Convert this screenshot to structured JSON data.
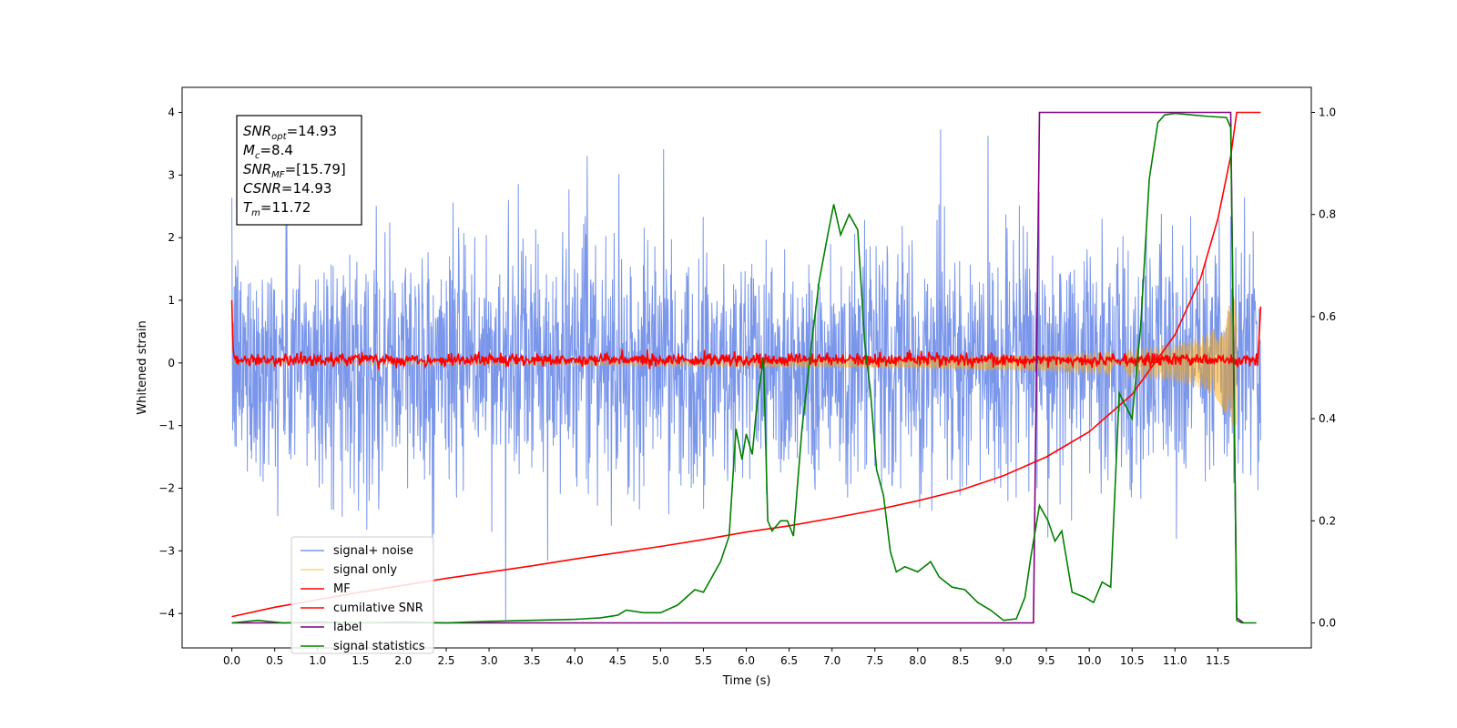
{
  "chart_data": {
    "type": "line",
    "xlabel": "Time (s)",
    "ylabel": "Whitened strain",
    "xlim": [
      -0.58,
      12.59
    ],
    "ylim": [
      -4.55,
      4.4
    ],
    "y2lim": [
      -0.049,
      1.049
    ],
    "xticks": [
      0.0,
      0.5,
      1.0,
      1.5,
      2.0,
      2.5,
      3.0,
      3.5,
      4.0,
      4.5,
      5.0,
      5.5,
      6.0,
      6.5,
      7.0,
      7.5,
      8.0,
      8.5,
      9.0,
      9.5,
      10.0,
      10.5,
      11.0,
      11.5
    ],
    "xtick_labels": [
      "0.0",
      "0.5",
      "1.0",
      "1.5",
      "2.0",
      "2.5",
      "3.0",
      "3.5",
      "4.0",
      "4.5",
      "5.0",
      "5.5",
      "6.0",
      "6.5",
      "7.0",
      "7.5",
      "8.0",
      "8.5",
      "9.0",
      "9.5",
      "10.0",
      "10.5",
      "11.0",
      "11.5"
    ],
    "yticks": [
      -4,
      -3,
      -2,
      -1,
      0,
      1,
      2,
      3,
      4
    ],
    "ytick_labels": [
      "−4",
      "−3",
      "−2",
      "−1",
      "0",
      "1",
      "2",
      "3",
      "4"
    ],
    "y2ticks": [
      0.0,
      0.2,
      0.4,
      0.6,
      0.8,
      1.0
    ],
    "y2tick_labels": [
      "0.0",
      "0.2",
      "0.4",
      "0.6",
      "0.8",
      "1.0"
    ],
    "grid": false,
    "legend_position": "lower-left",
    "annotation": [
      {
        "main": "SNR",
        "sub": "opt",
        "rest": "=14.93"
      },
      {
        "main": "M",
        "sub": "c",
        "rest": "=8.4"
      },
      {
        "main": "SNR",
        "sub": "MF",
        "rest": "=[15.79]"
      },
      {
        "main": "CSNR",
        "sub": "",
        "rest": "=14.93"
      },
      {
        "main": "T",
        "sub": "m",
        "rest": "=11.72"
      }
    ],
    "series": [
      {
        "name": "signal+ noise",
        "color": "#4169e1",
        "axis": "left",
        "kind": "noise",
        "x_range": [
          0.0,
          12.0
        ],
        "std": 1.0,
        "min": -4.1,
        "max": 4.0
      },
      {
        "name": "signal only",
        "color": "#ffa500",
        "axis": "left",
        "kind": "chirp",
        "x_range": [
          0.0,
          11.72
        ],
        "amplitude_envelope": {
          "x": [
            0,
            2,
            4,
            6,
            8,
            9,
            10,
            10.5,
            11,
            11.3,
            11.5,
            11.6,
            11.72
          ],
          "y": [
            0.02,
            0.03,
            0.04,
            0.06,
            0.09,
            0.12,
            0.17,
            0.22,
            0.3,
            0.4,
            0.6,
            0.85,
            1.1
          ]
        }
      },
      {
        "name": "MF",
        "color": "#ff0000",
        "axis": "left",
        "kind": "mf",
        "x_range": [
          0.0,
          12.0
        ],
        "start_value": 1.0,
        "baseline": 0.05,
        "noise": 0.05,
        "end_value": 0.9
      },
      {
        "name": "cumilative SNR",
        "color": "#ff0000",
        "axis": "left",
        "x": [
          0.0,
          0.5,
          1.0,
          1.5,
          2.0,
          2.5,
          3.0,
          3.5,
          4.0,
          4.5,
          5.0,
          5.5,
          6.0,
          6.5,
          7.0,
          7.5,
          8.0,
          8.5,
          9.0,
          9.5,
          10.0,
          10.5,
          11.0,
          11.3,
          11.5,
          11.65,
          11.72,
          11.8,
          12.0
        ],
        "y": [
          -4.05,
          -3.9,
          -3.78,
          -3.66,
          -3.55,
          -3.44,
          -3.34,
          -3.24,
          -3.13,
          -3.03,
          -2.93,
          -2.82,
          -2.7,
          -2.6,
          -2.48,
          -2.35,
          -2.2,
          -2.03,
          -1.8,
          -1.5,
          -1.1,
          -0.5,
          0.45,
          1.35,
          2.3,
          3.3,
          4.0,
          4.0,
          4.0
        ]
      },
      {
        "name": "label",
        "color": "#800080",
        "axis": "right",
        "x": [
          0.0,
          9.35,
          9.42,
          11.65,
          11.72,
          11.8
        ],
        "y": [
          0.0,
          0.0,
          1.0,
          1.0,
          0.01,
          0.0
        ]
      },
      {
        "name": "signal statistics",
        "color": "#008000",
        "axis": "right",
        "x": [
          0.0,
          0.3,
          0.6,
          1.0,
          1.5,
          2.0,
          2.5,
          3.0,
          3.5,
          4.0,
          4.3,
          4.5,
          4.6,
          4.8,
          5.0,
          5.2,
          5.4,
          5.5,
          5.6,
          5.7,
          5.8,
          5.88,
          5.95,
          6.0,
          6.07,
          6.12,
          6.2,
          6.25,
          6.3,
          6.4,
          6.48,
          6.55,
          6.65,
          6.75,
          6.85,
          6.95,
          7.02,
          7.1,
          7.2,
          7.3,
          7.38,
          7.45,
          7.52,
          7.6,
          7.68,
          7.75,
          7.85,
          8.0,
          8.15,
          8.25,
          8.4,
          8.55,
          8.7,
          8.85,
          9.0,
          9.15,
          9.25,
          9.32,
          9.42,
          9.52,
          9.6,
          9.68,
          9.8,
          9.95,
          10.05,
          10.15,
          10.25,
          10.35,
          10.5,
          10.6,
          10.7,
          10.8,
          10.88,
          11.0,
          11.2,
          11.4,
          11.6,
          11.65,
          11.72,
          11.78,
          11.85,
          11.95
        ],
        "y": [
          0.0,
          0.005,
          0.0,
          0.002,
          0.0,
          0.002,
          0.0,
          0.003,
          0.005,
          0.007,
          0.01,
          0.015,
          0.025,
          0.02,
          0.02,
          0.035,
          0.065,
          0.06,
          0.09,
          0.12,
          0.17,
          0.38,
          0.32,
          0.37,
          0.33,
          0.42,
          0.52,
          0.2,
          0.18,
          0.2,
          0.2,
          0.17,
          0.38,
          0.53,
          0.67,
          0.76,
          0.82,
          0.76,
          0.8,
          0.77,
          0.55,
          0.45,
          0.3,
          0.25,
          0.14,
          0.1,
          0.11,
          0.1,
          0.12,
          0.09,
          0.07,
          0.065,
          0.04,
          0.025,
          0.005,
          0.008,
          0.05,
          0.13,
          0.23,
          0.2,
          0.16,
          0.18,
          0.06,
          0.05,
          0.04,
          0.08,
          0.07,
          0.45,
          0.4,
          0.58,
          0.87,
          0.98,
          0.995,
          0.998,
          0.995,
          0.992,
          0.99,
          0.97,
          0.005,
          0.0,
          0.0,
          0.0
        ]
      }
    ]
  }
}
